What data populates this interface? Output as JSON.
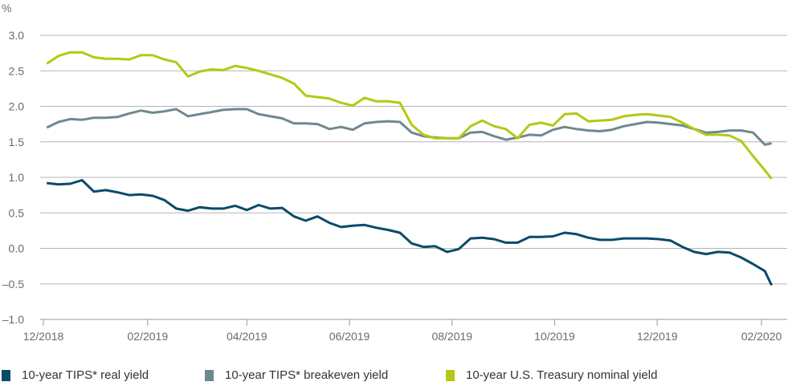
{
  "chart_data": {
    "type": "line",
    "title": "",
    "xlabel": "",
    "ylabel": "%",
    "ylim": [
      -1.0,
      3.0
    ],
    "yticks": [
      "3.0",
      "2.5",
      "2.0",
      "1.5",
      "1.0",
      "0.5",
      "0.0",
      "-0.5",
      "-1.0"
    ],
    "xticks": [
      {
        "date": "2018-12-01",
        "label": "12/2018"
      },
      {
        "date": "2019-02-01",
        "label": "02/2019"
      },
      {
        "date": "2019-04-01",
        "label": "04/2019"
      },
      {
        "date": "2019-06-01",
        "label": "06/2019"
      },
      {
        "date": "2019-08-01",
        "label": "08/2019"
      },
      {
        "date": "2019-10-01",
        "label": "10/2019"
      },
      {
        "date": "2019-12-01",
        "label": "12/2019"
      },
      {
        "date": "2020-02-01",
        "label": "02/2020"
      }
    ],
    "grid": true,
    "legend_position": "bottom",
    "x": [
      "2018-12-03",
      "2018-12-10",
      "2018-12-17",
      "2018-12-24",
      "2018-12-31",
      "2019-01-07",
      "2019-01-14",
      "2019-01-21",
      "2019-01-28",
      "2019-02-04",
      "2019-02-11",
      "2019-02-18",
      "2019-02-25",
      "2019-03-04",
      "2019-03-11",
      "2019-03-18",
      "2019-03-25",
      "2019-04-01",
      "2019-04-08",
      "2019-04-15",
      "2019-04-22",
      "2019-04-29",
      "2019-05-06",
      "2019-05-13",
      "2019-05-20",
      "2019-05-27",
      "2019-06-03",
      "2019-06-10",
      "2019-06-17",
      "2019-06-24",
      "2019-07-01",
      "2019-07-08",
      "2019-07-15",
      "2019-07-22",
      "2019-07-29",
      "2019-08-05",
      "2019-08-12",
      "2019-08-19",
      "2019-08-26",
      "2019-09-02",
      "2019-09-09",
      "2019-09-16",
      "2019-09-23",
      "2019-09-30",
      "2019-10-07",
      "2019-10-14",
      "2019-10-21",
      "2019-10-28",
      "2019-11-04",
      "2019-11-11",
      "2019-11-18",
      "2019-11-25",
      "2019-12-02",
      "2019-12-09",
      "2019-12-16",
      "2019-12-23",
      "2019-12-30",
      "2020-01-06",
      "2020-01-13",
      "2020-01-20",
      "2020-01-27",
      "2020-02-03",
      "2020-02-07"
    ],
    "series": [
      {
        "name": "10-year TIPS* real yield",
        "color": "#0b4a6b",
        "values": [
          0.92,
          0.9,
          0.91,
          0.96,
          0.8,
          0.82,
          0.79,
          0.75,
          0.76,
          0.74,
          0.68,
          0.56,
          0.53,
          0.58,
          0.56,
          0.56,
          0.6,
          0.54,
          0.61,
          0.56,
          0.57,
          0.45,
          0.39,
          0.45,
          0.36,
          0.3,
          0.32,
          0.33,
          0.29,
          0.26,
          0.22,
          0.07,
          0.02,
          0.03,
          -0.05,
          -0.01,
          0.14,
          0.15,
          0.13,
          0.08,
          0.08,
          0.16,
          0.16,
          0.17,
          0.22,
          0.2,
          0.15,
          0.12,
          0.12,
          0.14,
          0.14,
          0.14,
          0.13,
          0.11,
          0.02,
          -0.05,
          -0.08,
          -0.05,
          -0.06,
          -0.13,
          -0.22,
          -0.32,
          -0.52
        ]
      },
      {
        "name": "10-year TIPS* breakeven yield",
        "color": "#6f8890",
        "values": [
          1.7,
          1.78,
          1.82,
          1.81,
          1.84,
          1.84,
          1.85,
          1.9,
          1.94,
          1.91,
          1.93,
          1.96,
          1.86,
          1.89,
          1.92,
          1.95,
          1.96,
          1.96,
          1.89,
          1.86,
          1.83,
          1.76,
          1.76,
          1.75,
          1.68,
          1.71,
          1.67,
          1.76,
          1.78,
          1.79,
          1.78,
          1.63,
          1.58,
          1.56,
          1.55,
          1.55,
          1.63,
          1.64,
          1.58,
          1.53,
          1.56,
          1.6,
          1.59,
          1.67,
          1.71,
          1.68,
          1.66,
          1.65,
          1.67,
          1.72,
          1.75,
          1.78,
          1.77,
          1.75,
          1.73,
          1.68,
          1.63,
          1.64,
          1.66,
          1.66,
          1.63,
          1.46,
          1.48
        ]
      },
      {
        "name": "10-year U.S. Treasury nominal yield",
        "color": "#b5c814",
        "values": [
          2.6,
          2.71,
          2.76,
          2.76,
          2.69,
          2.67,
          2.67,
          2.66,
          2.72,
          2.72,
          2.66,
          2.62,
          2.42,
          2.49,
          2.52,
          2.51,
          2.57,
          2.54,
          2.5,
          2.45,
          2.4,
          2.32,
          2.15,
          2.13,
          2.11,
          2.05,
          2.01,
          2.12,
          2.07,
          2.07,
          2.05,
          1.74,
          1.6,
          1.55,
          1.55,
          1.55,
          1.72,
          1.8,
          1.72,
          1.68,
          1.55,
          1.74,
          1.77,
          1.73,
          1.89,
          1.9,
          1.79,
          1.8,
          1.81,
          1.86,
          1.88,
          1.89,
          1.87,
          1.85,
          1.77,
          1.68,
          1.6,
          1.6,
          1.59,
          1.51,
          1.3,
          1.1,
          0.98
        ]
      }
    ]
  }
}
